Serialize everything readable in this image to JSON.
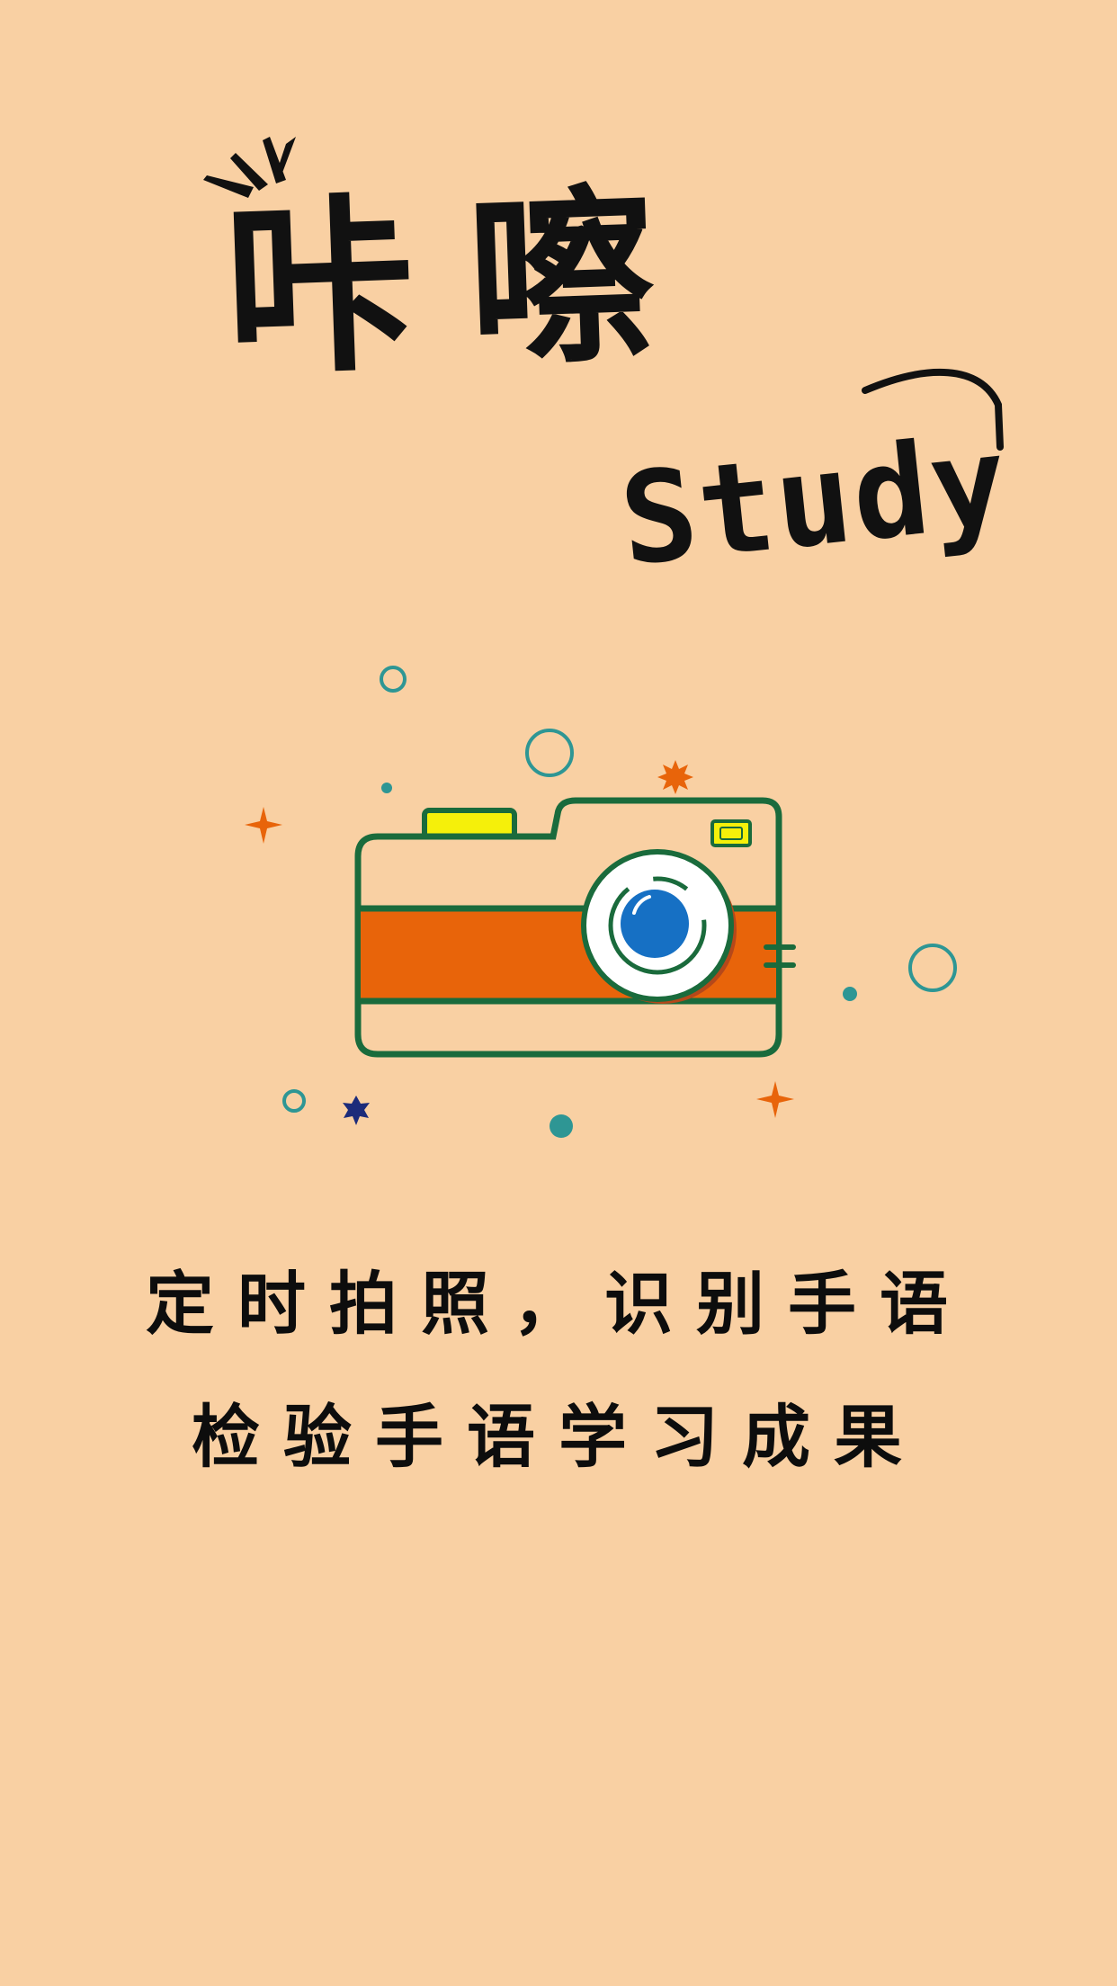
{
  "app": {
    "title_cn": "咔嚓",
    "title_en": "Study"
  },
  "illustration": {
    "subject": "camera-illustration",
    "colors": {
      "background": "#f9d0a3",
      "outline": "#1a6b3c",
      "stripe": "#e8640a",
      "lens": "#1670c4",
      "flash": "#f5f00a",
      "bubble": "#2e9694",
      "star_orange": "#e8640a",
      "star_navy": "#1c2b7a"
    }
  },
  "tagline": {
    "line1": "定时拍照，识别手语",
    "line2": "检验手语学习成果"
  }
}
